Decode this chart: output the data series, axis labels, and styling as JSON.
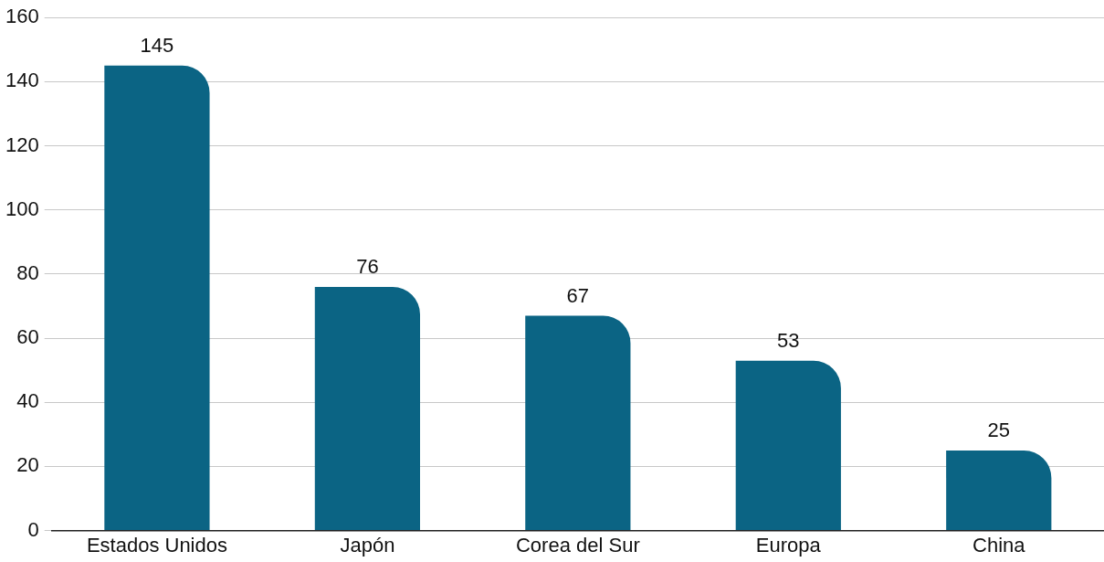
{
  "chart_data": {
    "type": "bar",
    "categories": [
      "Estados Unidos",
      "Japón",
      "Corea del Sur",
      "Europa",
      "China"
    ],
    "values": [
      145,
      76,
      67,
      53,
      25
    ],
    "color": "#0b6484",
    "ylim": [
      0,
      160
    ],
    "yticks": [
      0,
      20,
      40,
      60,
      80,
      100,
      120,
      140,
      160
    ],
    "grid": "y",
    "data_labels": true
  }
}
